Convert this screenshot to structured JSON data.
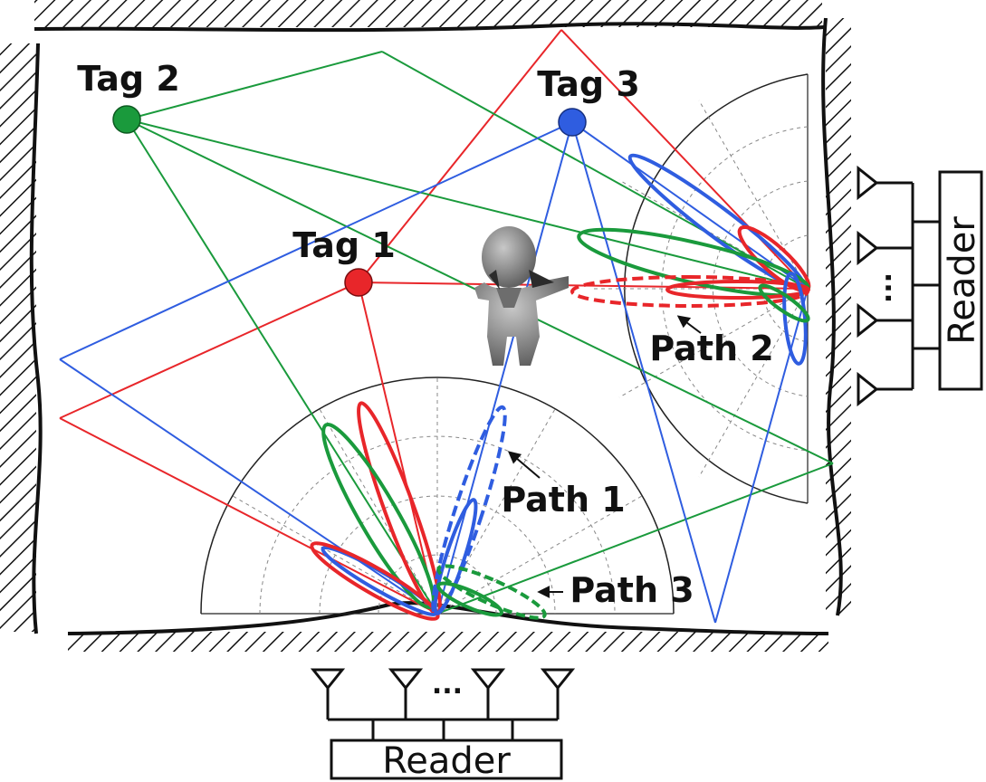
{
  "tags": [
    {
      "id": "tag1",
      "label": "Tag 1",
      "color": "#e8262a"
    },
    {
      "id": "tag2",
      "label": "Tag 2",
      "color": "#1a9a3c"
    },
    {
      "id": "tag3",
      "label": "Tag 3",
      "color": "#2f5de0"
    }
  ],
  "paths": [
    {
      "id": "path1",
      "label": "Path 1"
    },
    {
      "id": "path2",
      "label": "Path 2"
    },
    {
      "id": "path3",
      "label": "Path 3"
    }
  ],
  "readers": {
    "bottom": {
      "label": "Reader",
      "ellipsis": "..."
    },
    "right": {
      "label": "Reader",
      "ellipsis": "..."
    }
  },
  "colors": {
    "red": "#e8262a",
    "green": "#1a9a3c",
    "blue": "#2f5de0",
    "wall": "#111111",
    "grid": "#888888",
    "person": "#8a8a8a"
  }
}
